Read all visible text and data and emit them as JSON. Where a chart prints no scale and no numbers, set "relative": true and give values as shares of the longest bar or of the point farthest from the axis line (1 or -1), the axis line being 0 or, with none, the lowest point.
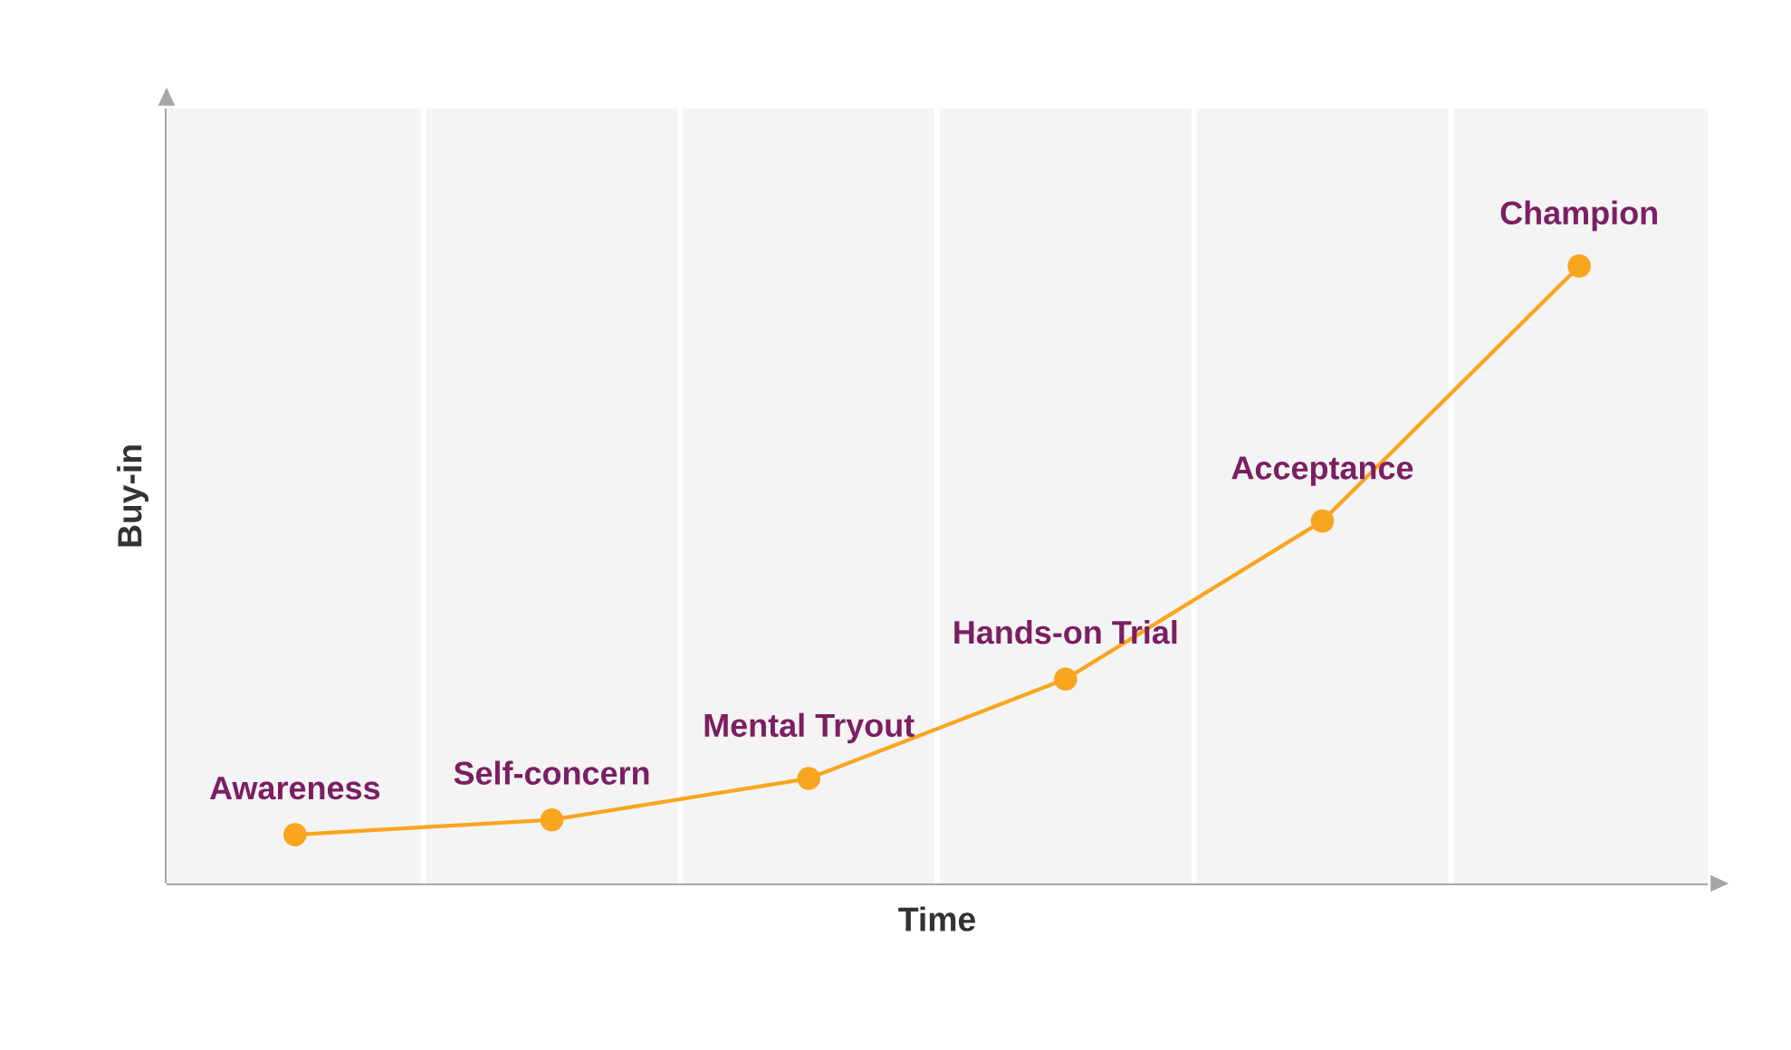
{
  "chart_data": {
    "type": "line",
    "xlabel": "Time",
    "ylabel": "Buy-in",
    "relative": true,
    "grid": "x",
    "marker": "circle",
    "line_style": "solid",
    "categories": [
      null,
      null,
      null,
      null,
      null,
      null
    ],
    "series": [
      {
        "color": "#f9a51f",
        "values": [
          0.079,
          0.103,
          0.17,
          0.331,
          0.587,
          1
        ]
      }
    ],
    "annotations": [
      "Awareness",
      "Self-concern",
      "Mental Tryout",
      "Hands-on Trial",
      "Acceptance",
      "Champion"
    ]
  }
}
